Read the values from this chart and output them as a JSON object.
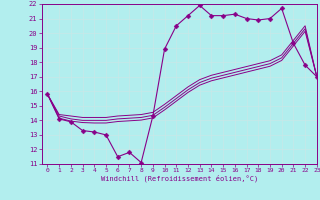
{
  "xlabel": "Windchill (Refroidissement éolien,°C)",
  "x_data": [
    0,
    1,
    2,
    3,
    4,
    5,
    6,
    7,
    8,
    9,
    10,
    11,
    12,
    13,
    14,
    15,
    16,
    17,
    18,
    19,
    20,
    21,
    22,
    23
  ],
  "y_main": [
    15.8,
    14.1,
    13.9,
    13.3,
    13.2,
    13.0,
    11.5,
    11.8,
    11.1,
    14.3,
    18.9,
    20.5,
    21.2,
    21.9,
    21.2,
    21.2,
    21.3,
    21.0,
    20.9,
    21.0,
    21.7,
    19.3,
    17.8,
    17.0
  ],
  "y_line1": [
    15.8,
    14.4,
    14.3,
    14.2,
    14.2,
    14.2,
    14.3,
    14.35,
    14.4,
    14.55,
    15.1,
    15.7,
    16.3,
    16.8,
    17.1,
    17.3,
    17.5,
    17.7,
    17.9,
    18.1,
    18.5,
    19.5,
    20.5,
    17.0
  ],
  "y_line2": [
    15.8,
    14.3,
    14.1,
    14.0,
    14.0,
    14.0,
    14.1,
    14.15,
    14.2,
    14.35,
    14.9,
    15.5,
    16.1,
    16.6,
    16.9,
    17.1,
    17.3,
    17.5,
    17.7,
    17.9,
    18.3,
    19.3,
    20.3,
    17.0
  ],
  "y_line3": [
    15.8,
    14.15,
    13.95,
    13.85,
    13.82,
    13.82,
    13.92,
    13.97,
    14.02,
    14.17,
    14.72,
    15.32,
    15.92,
    16.42,
    16.72,
    16.92,
    17.12,
    17.32,
    17.52,
    17.72,
    18.12,
    19.12,
    20.12,
    17.0
  ],
  "ylim": [
    11,
    22
  ],
  "xlim": [
    -0.5,
    23
  ],
  "yticks": [
    11,
    12,
    13,
    14,
    15,
    16,
    17,
    18,
    19,
    20,
    21,
    22
  ],
  "xticks": [
    0,
    1,
    2,
    3,
    4,
    5,
    6,
    7,
    8,
    9,
    10,
    11,
    12,
    13,
    14,
    15,
    16,
    17,
    18,
    19,
    20,
    21,
    22,
    23
  ],
  "line_color": "#880088",
  "bg_color": "#b2eeee",
  "grid_color": "#d0f0f0",
  "marker": "D",
  "markersize": 2.5
}
